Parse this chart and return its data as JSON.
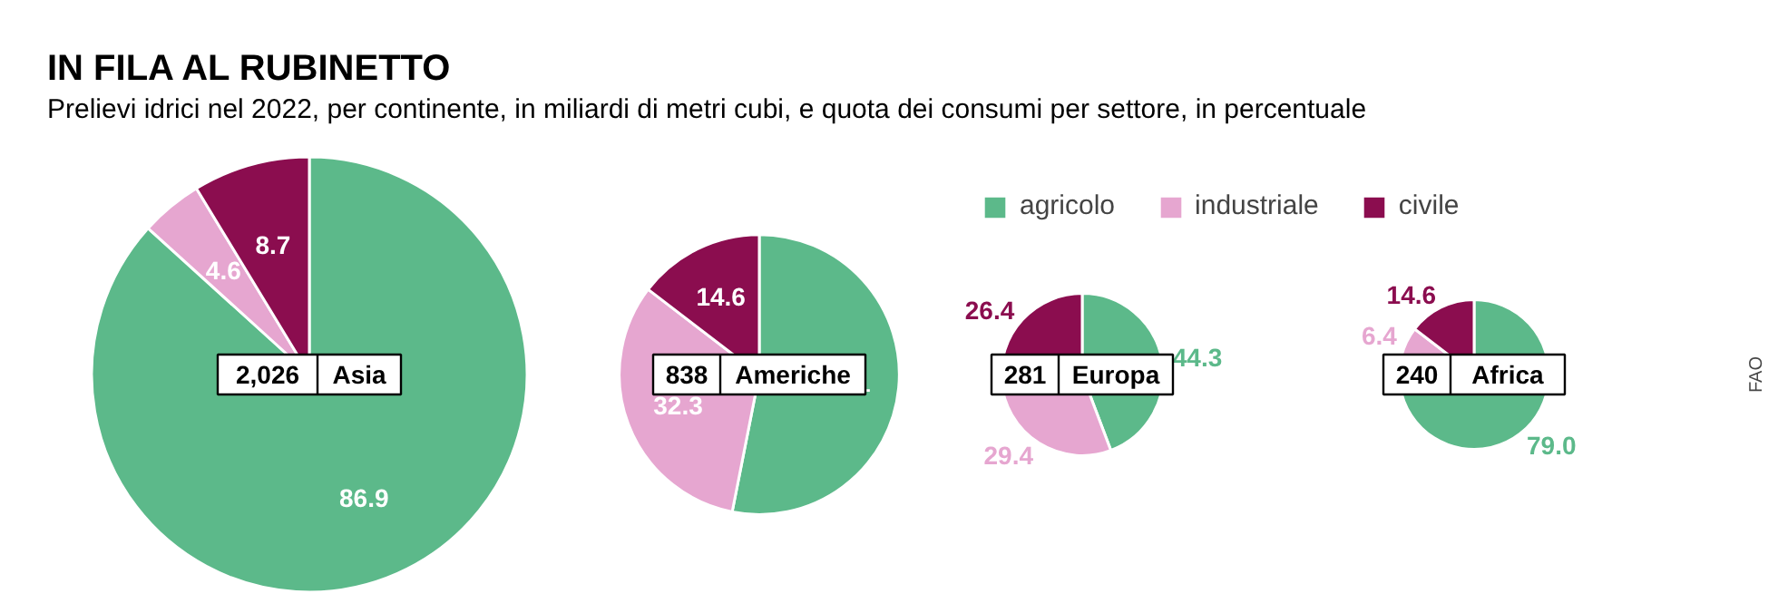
{
  "chart_data": [
    {
      "type": "pie",
      "title": "IN FILA AL RUBINETTO",
      "subtitle": "Prelievi idrici nel 2022, per continente, in miliardi di metri cubi, e quota dei consumi per settore, in percentuale",
      "annotations": [
        "2,026",
        "Asia"
      ],
      "categories": [
        "agricolo",
        "industriale",
        "civile"
      ],
      "values": [
        86.9,
        4.6,
        8.7
      ],
      "colors": [
        "#5cb98a",
        "#e6a6d0",
        "#8b0d4f"
      ],
      "data_labels": true,
      "legend": "top"
    },
    {
      "type": "pie",
      "annotations": [
        "838",
        "Americhe"
      ],
      "values": [
        53.1,
        32.3,
        14.6
      ],
      "colors": [
        "#5cb98a",
        "#e6a6d0",
        "#8b0d4f"
      ],
      "data_labels": true
    },
    {
      "type": "pie",
      "annotations": [
        "281",
        "Europa"
      ],
      "values": [
        44.3,
        29.4,
        26.4
      ],
      "colors": [
        "#5cb98a",
        "#e6a6d0",
        "#8b0d4f"
      ],
      "data_labels": true
    },
    {
      "type": "pie",
      "annotations": [
        "240",
        "Africa",
        "FAO"
      ],
      "values": [
        79.0,
        6.4,
        14.6
      ],
      "value_labels": [
        "79.0",
        "6.4",
        "14.6"
      ],
      "colors": [
        "#5cb98a",
        "#e6a6d0",
        "#8b0d4f"
      ]
    }
  ]
}
